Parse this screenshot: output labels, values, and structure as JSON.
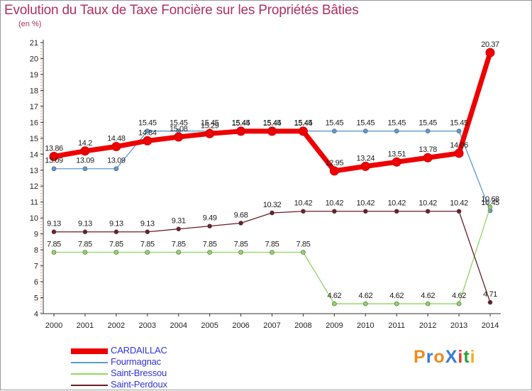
{
  "title": "Evolution du Taux de Taxe Foncière sur les Propriétés Bâties",
  "subtitle": "(en %)",
  "logo": {
    "text": "ProXiti",
    "letters": [
      "P",
      "r",
      "o",
      "X",
      "i",
      "t",
      "i"
    ],
    "colors": [
      "#f08a1d",
      "#3b7bd4",
      "#f08a1d",
      "#3b7bd4",
      "#e83d2c",
      "#2e9e3e",
      "#f0b020"
    ]
  },
  "chart_data": {
    "type": "line",
    "title": "Evolution du Taux de Taxe Foncière sur les Propriétés Bâties",
    "ylabel": "(en %)",
    "xlabel": "",
    "ylim": [
      4,
      21
    ],
    "yticks": [
      "4",
      "5",
      "6",
      "7",
      "8",
      "9",
      "10",
      "11",
      "12",
      "13",
      "14",
      "15",
      "16",
      "17",
      "18",
      "19",
      "20",
      "21"
    ],
    "grid": false,
    "categories": [
      "2000",
      "2001",
      "2002",
      "2003",
      "2004",
      "2005",
      "2006",
      "2007",
      "2008",
      "2009",
      "2010",
      "2011",
      "2012",
      "2013",
      "2014"
    ],
    "series": [
      {
        "name": "CARDAILLAC",
        "color": "#ee0000",
        "emphasized": true,
        "values": [
          13.86,
          14.2,
          14.48,
          14.84,
          15.08,
          15.29,
          15.44,
          15.44,
          15.44,
          12.95,
          13.24,
          13.51,
          13.78,
          14.06,
          20.37
        ],
        "labels": [
          "13.86",
          "14.2",
          "14.48",
          "14.84",
          "15.08",
          "15.29",
          "15.44",
          "15.44",
          "15.44",
          "12.95",
          "13.24",
          "13.51",
          "13.78",
          "14.06",
          "20.37"
        ]
      },
      {
        "name": "Fourmagnac",
        "color": "#5b9bd0",
        "emphasized": false,
        "values": [
          13.09,
          13.09,
          13.09,
          15.45,
          15.45,
          15.45,
          15.45,
          15.45,
          15.45,
          15.45,
          15.45,
          15.45,
          15.45,
          15.45,
          10.45
        ],
        "labels": [
          "13.09",
          "13.09",
          "13.09",
          "15.45",
          "15.45",
          "15.45",
          "15.45",
          "15.45",
          "15.45",
          "15.45",
          "15.45",
          "15.45",
          "15.45",
          "15.45",
          "10.45"
        ]
      },
      {
        "name": "Saint-Bressou",
        "color": "#8fd65f",
        "emphasized": false,
        "values": [
          7.85,
          7.85,
          7.85,
          7.85,
          7.85,
          7.85,
          7.85,
          7.85,
          7.85,
          4.62,
          4.62,
          4.62,
          4.62,
          4.62,
          10.68
        ],
        "labels": [
          "7.85",
          "7.85",
          "7.85",
          "7.85",
          "7.85",
          "7.85",
          "7.85",
          "7.85",
          "7.85",
          "4.62",
          "4.62",
          "4.62",
          "4.62",
          "4.62",
          "10.68"
        ]
      },
      {
        "name": "Saint-Perdoux",
        "color": "#6b1e28",
        "emphasized": false,
        "values": [
          9.13,
          9.13,
          9.13,
          9.13,
          9.31,
          9.49,
          9.68,
          10.32,
          10.42,
          10.42,
          10.42,
          10.42,
          10.42,
          10.42,
          4.71
        ],
        "labels": [
          "9.13",
          "9.13",
          "9.13",
          "9.13",
          "9.31",
          "9.49",
          "9.68",
          "10.32",
          "10.42",
          "10.42",
          "10.42",
          "10.42",
          "10.42",
          "10.42",
          "4.71"
        ]
      }
    ],
    "legend_position": "bottom-left"
  }
}
